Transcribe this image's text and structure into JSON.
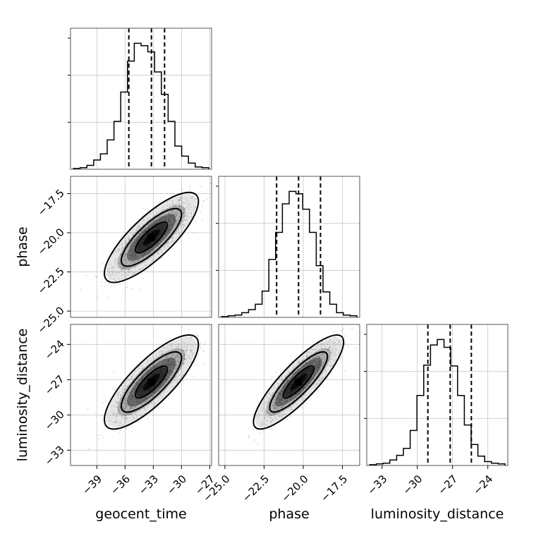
{
  "chart_data": {
    "type": "corner",
    "parameters": [
      {
        "key": "geocent_time",
        "label": "geocent_time",
        "range": [
          -41.8,
          -26.8
        ],
        "ticks": [
          -39,
          -36,
          -33,
          -30,
          -27
        ],
        "tick_labels": [
          "−39",
          "−36",
          "−33",
          "−30",
          "−27"
        ],
        "mean": -33.2,
        "std": 2.0,
        "quantiles": [
          -35.6,
          -33.2,
          -31.8
        ]
      },
      {
        "key": "phase",
        "label": "phase",
        "range": [
          -25.4,
          -16.4
        ],
        "ticks": [
          -25.0,
          -22.5,
          -20.0,
          -17.5
        ],
        "tick_labels": [
          "−25.0",
          "−22.5",
          "−20.0",
          "−17.5"
        ],
        "mean": -20.3,
        "std": 1.15,
        "quantiles": [
          -21.7,
          -20.3,
          -18.9
        ]
      },
      {
        "key": "luminosity_distance",
        "label": "luminosity_distance",
        "range": [
          -34.3,
          -22.3
        ],
        "ticks": [
          -33,
          -30,
          -27,
          -24
        ],
        "tick_labels": [
          "−33",
          "−30",
          "−27",
          "−24"
        ],
        "mean": -27.2,
        "std": 1.6,
        "quantiles": [
          -29.1,
          -27.2,
          -25.4
        ]
      }
    ],
    "histograms": [
      {
        "param": "geocent_time",
        "values": [
          1,
          2,
          5,
          12,
          20,
          38,
          62,
          100,
          140,
          163,
          160,
          152,
          126,
          97,
          62,
          30,
          17,
          8,
          3,
          2
        ]
      },
      {
        "param": "phase",
        "values": [
          1,
          2,
          3,
          6,
          10,
          17,
          34,
          75,
          110,
          147,
          163,
          160,
          140,
          110,
          67,
          33,
          17,
          6,
          3,
          2
        ]
      },
      {
        "param": "luminosity_distance",
        "values": [
          1,
          2,
          3,
          7,
          13,
          22,
          45,
          90,
          129,
          155,
          162,
          152,
          128,
          90,
          52,
          27,
          12,
          5,
          3,
          2
        ]
      }
    ],
    "pairs": [
      {
        "x": "geocent_time",
        "y": "phase",
        "correlation": 0.8
      },
      {
        "x": "geocent_time",
        "y": "luminosity_distance",
        "correlation": 0.8
      },
      {
        "x": "phase",
        "y": "luminosity_distance",
        "correlation": 0.85
      }
    ],
    "grid": true,
    "colors": {
      "line": "#000000",
      "density": "#000000",
      "points": "#8a8a8a",
      "gridline": "#c8c8c8",
      "frame": "#555555"
    }
  }
}
